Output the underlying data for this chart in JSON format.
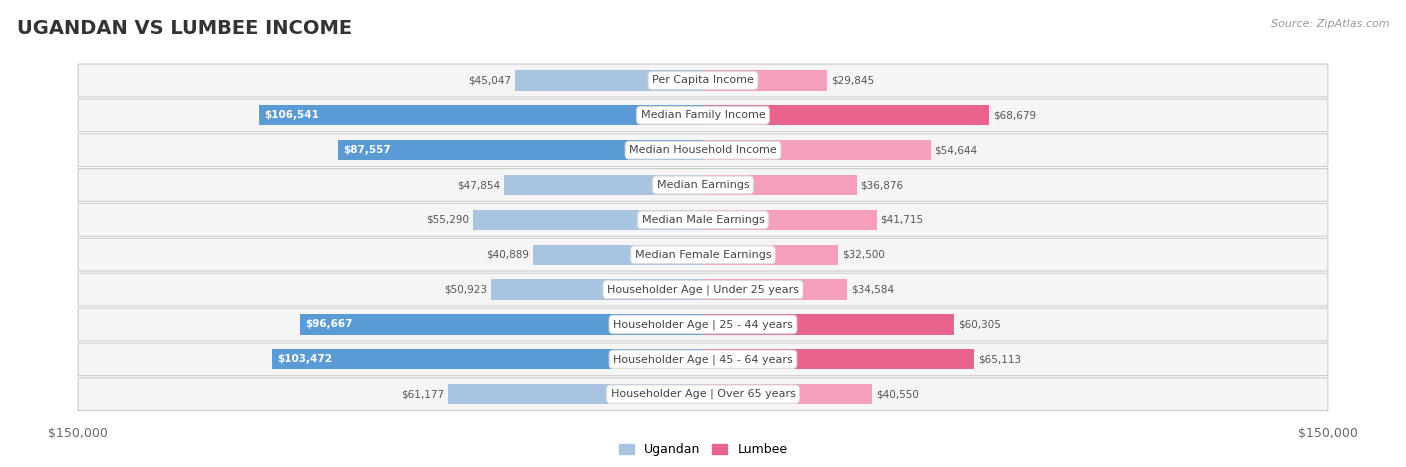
{
  "title": "UGANDAN VS LUMBEE INCOME",
  "source": "Source: ZipAtlas.com",
  "categories": [
    "Per Capita Income",
    "Median Family Income",
    "Median Household Income",
    "Median Earnings",
    "Median Male Earnings",
    "Median Female Earnings",
    "Householder Age | Under 25 years",
    "Householder Age | 25 - 44 years",
    "Householder Age | 45 - 64 years",
    "Householder Age | Over 65 years"
  ],
  "ugandan_values": [
    45047,
    106541,
    87557,
    47854,
    55290,
    40889,
    50923,
    96667,
    103472,
    61177
  ],
  "lumbee_values": [
    29845,
    68679,
    54644,
    36876,
    41715,
    32500,
    34584,
    60305,
    65113,
    40550
  ],
  "ugandan_labels": [
    "$45,047",
    "$106,541",
    "$87,557",
    "$47,854",
    "$55,290",
    "$40,889",
    "$50,923",
    "$96,667",
    "$103,472",
    "$61,177"
  ],
  "lumbee_labels": [
    "$29,845",
    "$68,679",
    "$54,644",
    "$36,876",
    "$41,715",
    "$32,500",
    "$34,584",
    "$60,305",
    "$65,113",
    "$40,550"
  ],
  "ugandan_color_light": "#a8c4e0",
  "ugandan_color_dark": "#5b9bd5",
  "lumbee_color_light": "#f4a0bb",
  "lumbee_color_dark": "#e8648c",
  "max_value": 150000,
  "background_color": "#ffffff",
  "title_fontsize": 14,
  "bar_height": 0.58,
  "legend_ugandan": "Ugandan",
  "legend_lumbee": "Lumbee",
  "ugandan_dark_threshold": 85000,
  "lumbee_dark_threshold": 55000
}
